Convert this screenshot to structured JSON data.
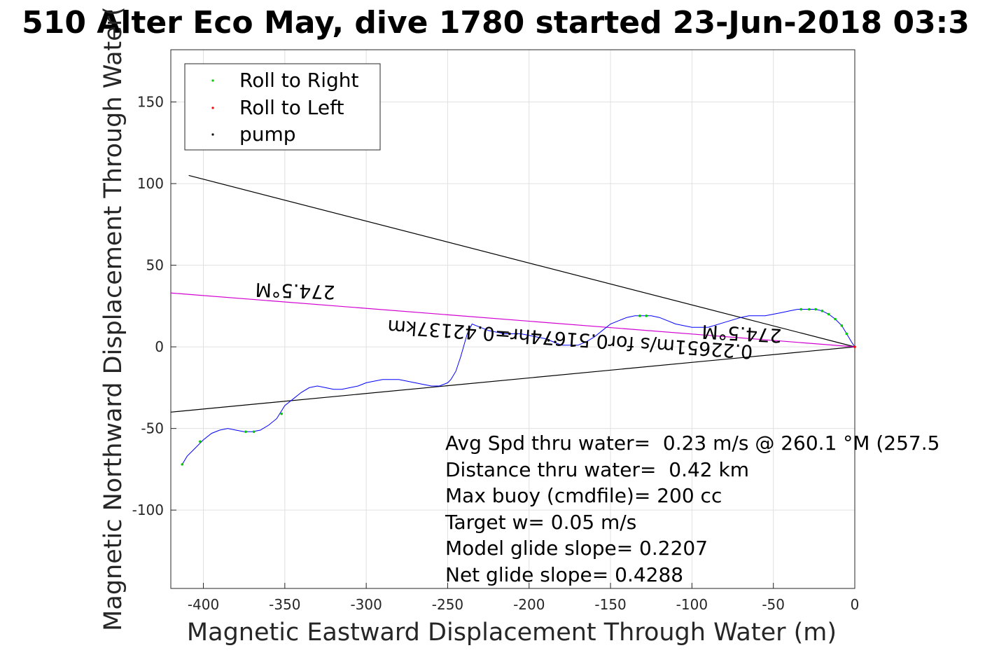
{
  "title": "510 Alter Eco May, dive 1780 started 23-Jun-2018 03:3",
  "xlabel": "Magnetic Eastward Displacement Through Water (m)",
  "ylabel": "Magnetic Northward Displacement Through Water(",
  "colors": {
    "track": "#0000ff",
    "roll_right": "#00cc00",
    "roll_left": "#ff0000",
    "pump": "#000000",
    "avg_line": "#d100d1",
    "grid": "#e0e0e0",
    "axis": "#262626"
  },
  "legend": {
    "placement": "top-left",
    "entries": [
      {
        "label": "Roll to Right",
        "color": "#00cc00"
      },
      {
        "label": "Roll to Left",
        "color": "#ff0000"
      },
      {
        "label": "pump",
        "color": "#000000"
      }
    ]
  },
  "annotations": {
    "heading_upper": "274.5°M",
    "heading_lower": "274.5°M",
    "speed_label": "0.22651m/s for0.51674hr=0.42137km"
  },
  "stats": [
    "Avg Spd thru water=  0.23 m/s @ 260.1 °M (257.5",
    "Distance thru water=  0.42 km",
    "Max buoy (cmdfile)= 200 cc",
    "Target w= 0.05 m/s",
    "Model glide slope= 0.2207",
    "Net glide slope= 0.4288"
  ],
  "chart_data": {
    "type": "line",
    "xlim": [
      -420,
      0
    ],
    "ylim": [
      -148,
      182
    ],
    "grid": true,
    "xticks": [
      -400,
      -350,
      -300,
      -250,
      -200,
      -150,
      -100,
      -50,
      0
    ],
    "yticks": [
      -100,
      -50,
      0,
      50,
      100,
      150
    ],
    "series": [
      {
        "name": "track",
        "x": [
          0,
          -2,
          -5,
          -8,
          -12,
          -16,
          -20,
          -24,
          -28,
          -32,
          -35,
          -40,
          -45,
          -50,
          -55,
          -60,
          -65,
          -70,
          -80,
          -90,
          -100,
          -110,
          -115,
          -120,
          -125,
          -130,
          -135,
          -140,
          -145,
          -150,
          -155,
          -160,
          -165,
          -170,
          -175,
          -180,
          -185,
          -190,
          -195,
          -200,
          -205,
          -210,
          -215,
          -220,
          -225,
          -230,
          -235,
          -238,
          -242,
          -245,
          -248,
          -250,
          -255,
          -260,
          -265,
          -270,
          -280,
          -290,
          -300,
          -305,
          -310,
          -315,
          -320,
          -325,
          -330,
          -335,
          -340,
          -345,
          -350,
          -355,
          -360,
          -365,
          -370,
          -375,
          -380,
          -385,
          -390,
          -395,
          -400,
          -405,
          -410,
          -413
        ],
        "y": [
          0,
          3,
          8,
          13,
          17,
          20,
          22,
          23,
          23,
          23,
          23,
          22,
          21,
          20,
          19,
          19,
          19,
          18,
          15,
          12,
          12,
          14,
          16,
          18,
          19,
          19,
          19,
          18,
          16,
          14,
          10,
          6,
          3,
          1,
          1,
          1,
          3,
          5,
          6,
          7,
          8,
          8,
          8,
          9,
          10,
          12,
          14,
          8,
          -6,
          -15,
          -20,
          -22,
          -24,
          -24,
          -23,
          -22,
          -20,
          -20,
          -22,
          -24,
          -25,
          -26,
          -26,
          -25,
          -24,
          -25,
          -28,
          -32,
          -36,
          -44,
          -48,
          -51,
          -52,
          -52,
          -51,
          -50,
          -51,
          -53,
          -57,
          -62,
          -67,
          -72
        ]
      }
    ],
    "roll_right_points": {
      "x": [
        -413,
        -402,
        -374,
        -369,
        -352,
        -132,
        -128,
        -33,
        -28,
        -24,
        -20,
        -16,
        -12,
        -8,
        -5
      ],
      "y": [
        -72,
        -58,
        -52,
        -52,
        -41,
        19,
        19,
        23,
        23,
        23,
        22,
        20,
        17,
        13,
        8
      ]
    },
    "roll_left_points": {
      "x": [
        0
      ],
      "y": [
        0
      ]
    },
    "pump_points": {
      "x": [
        -216,
        -212,
        -208,
        -188,
        -184
      ],
      "y": [
        8,
        8,
        8,
        4,
        3
      ]
    },
    "reference_lines": [
      {
        "name": "upper",
        "x": [
          -409,
          0
        ],
        "y": [
          105,
          0
        ]
      },
      {
        "name": "lower",
        "x": [
          -420,
          0
        ],
        "y": [
          -40,
          0
        ]
      },
      {
        "name": "avg",
        "x": [
          -420,
          0
        ],
        "y": [
          33,
          0
        ]
      }
    ]
  }
}
